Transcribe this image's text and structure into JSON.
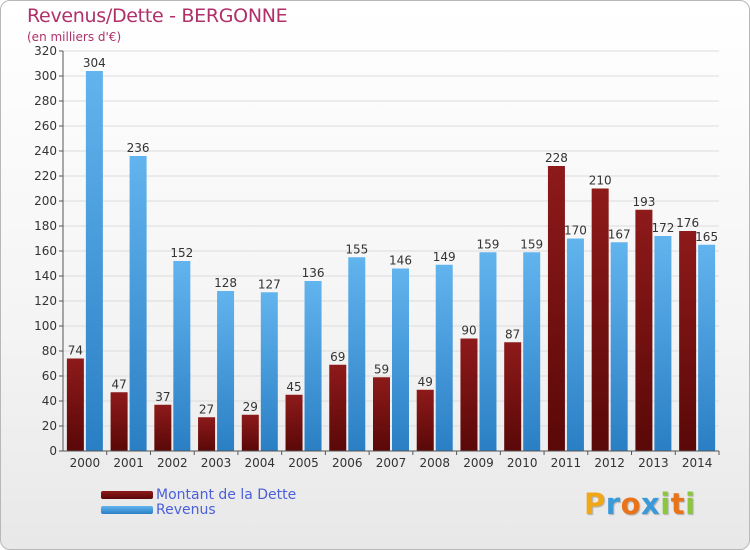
{
  "colors": {
    "dette": "#7a1111",
    "dette_light": "#a32a2a",
    "revenus": "#3b98dc",
    "revenus_light": "#62b4ee",
    "title": "#b0306a",
    "grid": "#dcdcdc",
    "axis": "#555555"
  },
  "chart_data": {
    "type": "bar",
    "title": "Revenus/Dette - BERGONNE",
    "subtitle": "(en milliers d'€)",
    "xlabel": "",
    "ylabel": "",
    "ylim": [
      0,
      320
    ],
    "yticks": [
      0,
      20,
      40,
      60,
      80,
      100,
      120,
      140,
      160,
      180,
      200,
      220,
      240,
      260,
      280,
      300,
      320
    ],
    "grid": true,
    "categories": [
      "2000",
      "2001",
      "2002",
      "2003",
      "2004",
      "2005",
      "2006",
      "2007",
      "2008",
      "2009",
      "2010",
      "2011",
      "2012",
      "2013",
      "2014"
    ],
    "series": [
      {
        "name": "Montant de la Dette",
        "values": [
          74,
          47,
          37,
          27,
          29,
          45,
          69,
          59,
          49,
          90,
          87,
          228,
          210,
          193,
          176
        ]
      },
      {
        "name": "Revenus",
        "values": [
          304,
          236,
          152,
          128,
          127,
          136,
          155,
          146,
          149,
          159,
          159,
          170,
          167,
          172,
          165
        ]
      }
    ],
    "legend_position": "bottom-left"
  },
  "legend": {
    "items": [
      {
        "label": "Montant de la Dette"
      },
      {
        "label": "Revenus"
      }
    ]
  },
  "logo": {
    "letters": [
      "P",
      "r",
      "o",
      "x",
      "i",
      "t",
      "i"
    ],
    "colors": [
      "#f0a818",
      "#3a9ad9",
      "#e8731a",
      "#3a9ad9",
      "#8cc63f",
      "#e8731a",
      "#8cc63f"
    ]
  }
}
